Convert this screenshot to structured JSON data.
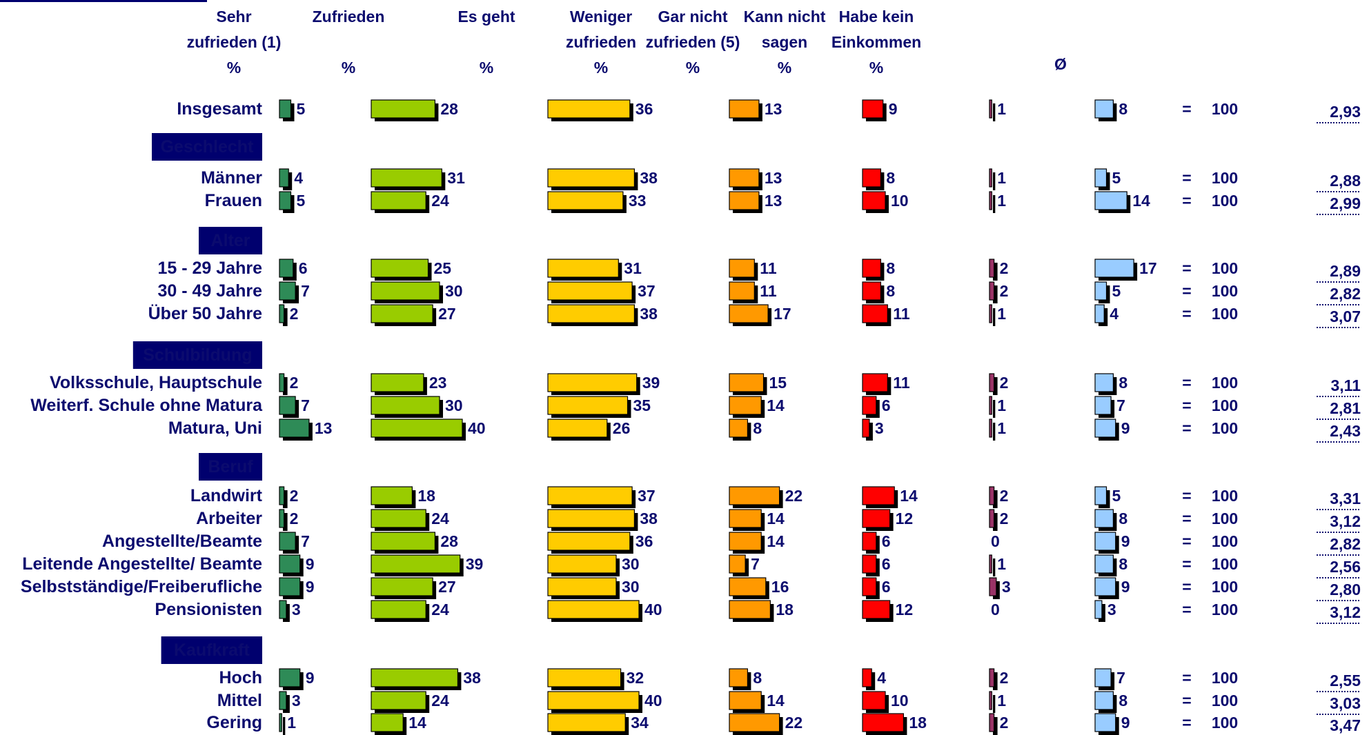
{
  "chart_data": {
    "type": "bar",
    "columns": [
      {
        "key": "sehr",
        "label_lines": [
          "Sehr",
          "zufrieden (1)"
        ],
        "unit": "%",
        "color": "#2e8b57"
      },
      {
        "key": "zufr",
        "label_lines": [
          "Zufrieden",
          ""
        ],
        "unit": "%",
        "color": "#99cc00"
      },
      {
        "key": "esgeht",
        "label_lines": [
          "Es geht",
          ""
        ],
        "unit": "%",
        "color": "#ffcc00"
      },
      {
        "key": "weniger",
        "label_lines": [
          "Weniger",
          "zufrieden"
        ],
        "unit": "%",
        "color": "#ff9900"
      },
      {
        "key": "garnicht",
        "label_lines": [
          "Gar nicht",
          "zufrieden (5)"
        ],
        "unit": "%",
        "color": "#ff0000"
      },
      {
        "key": "kann",
        "label_lines": [
          "Kann nicht",
          "sagen"
        ],
        "unit": "%",
        "color": "#993366"
      },
      {
        "key": "habe",
        "label_lines": [
          "Habe kein",
          "Einkommen"
        ],
        "unit": "%",
        "color": "#99ccff"
      }
    ],
    "avg_header": "Ø",
    "equals": "=",
    "total": "100",
    "rows": [
      {
        "type": "row",
        "label": "Insgesamt",
        "values": [
          5,
          28,
          36,
          13,
          9,
          1,
          8
        ],
        "avg": "2,93"
      },
      {
        "type": "group",
        "label": "Geschlecht"
      },
      {
        "type": "row",
        "label": "Männer",
        "values": [
          4,
          31,
          38,
          13,
          8,
          1,
          5
        ],
        "avg": "2,88"
      },
      {
        "type": "row",
        "label": "Frauen",
        "values": [
          5,
          24,
          33,
          13,
          10,
          1,
          14
        ],
        "avg": "2,99"
      },
      {
        "type": "group",
        "label": "Alter"
      },
      {
        "type": "row",
        "label": "15 - 29 Jahre",
        "values": [
          6,
          25,
          31,
          11,
          8,
          2,
          17
        ],
        "avg": "2,89"
      },
      {
        "type": "row",
        "label": "30 - 49 Jahre",
        "values": [
          7,
          30,
          37,
          11,
          8,
          2,
          5
        ],
        "avg": "2,82"
      },
      {
        "type": "row",
        "label": "Über 50 Jahre",
        "values": [
          2,
          27,
          38,
          17,
          11,
          1,
          4
        ],
        "avg": "3,07"
      },
      {
        "type": "group",
        "label": "Schulbildung"
      },
      {
        "type": "row",
        "label": "Volksschule, Hauptschule",
        "values": [
          2,
          23,
          39,
          15,
          11,
          2,
          8
        ],
        "avg": "3,11"
      },
      {
        "type": "row",
        "label": "Weiterf. Schule ohne Matura",
        "values": [
          7,
          30,
          35,
          14,
          6,
          1,
          7
        ],
        "avg": "2,81"
      },
      {
        "type": "row",
        "label": "Matura, Uni",
        "values": [
          13,
          40,
          26,
          8,
          3,
          1,
          9
        ],
        "avg": "2,43"
      },
      {
        "type": "group",
        "label": "Beruf"
      },
      {
        "type": "row",
        "label": "Landwirt",
        "values": [
          2,
          18,
          37,
          22,
          14,
          2,
          5
        ],
        "avg": "3,31"
      },
      {
        "type": "row",
        "label": "Arbeiter",
        "values": [
          2,
          24,
          38,
          14,
          12,
          2,
          8
        ],
        "avg": "3,12"
      },
      {
        "type": "row",
        "label": "Angestellte/Beamte",
        "values": [
          7,
          28,
          36,
          14,
          6,
          0,
          9
        ],
        "avg": "2,82"
      },
      {
        "type": "row",
        "label": "Leitende Angestellte/ Beamte",
        "values": [
          9,
          39,
          30,
          7,
          6,
          1,
          8
        ],
        "avg": "2,56"
      },
      {
        "type": "row",
        "label": "Selbstständige/Freiberufliche",
        "values": [
          9,
          27,
          30,
          16,
          6,
          3,
          9
        ],
        "avg": "2,80"
      },
      {
        "type": "row",
        "label": "Pensionisten",
        "values": [
          3,
          24,
          40,
          18,
          12,
          0,
          3
        ],
        "avg": "3,12"
      },
      {
        "type": "group",
        "label": "Kaufkraft"
      },
      {
        "type": "row",
        "label": "Hoch",
        "values": [
          9,
          38,
          32,
          8,
          4,
          2,
          7
        ],
        "avg": "2,55"
      },
      {
        "type": "row",
        "label": "Mittel",
        "values": [
          3,
          24,
          40,
          14,
          10,
          1,
          8
        ],
        "avg": "3,03"
      },
      {
        "type": "row",
        "label": "Gering",
        "values": [
          1,
          14,
          34,
          22,
          18,
          2,
          9
        ],
        "avg": "3,47"
      }
    ]
  }
}
